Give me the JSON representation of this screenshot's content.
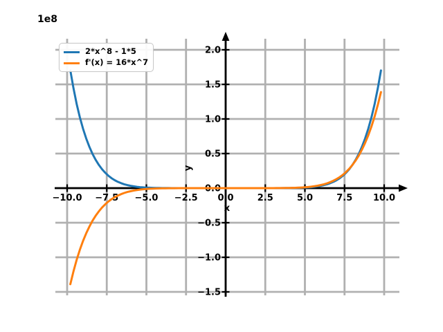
{
  "chart_data": {
    "type": "line",
    "offset_text": "1e8",
    "xlabel": "x",
    "ylabel": "y",
    "x_ticks": [
      -10,
      -7.5,
      -5,
      -2.5,
      0,
      2.5,
      5,
      7.5,
      10
    ],
    "x_tick_labels": [
      "−10.0",
      "−7.5",
      "−5.0",
      "−2.5",
      "0.0",
      "2.5",
      "5.0",
      "7.5",
      "10.0"
    ],
    "y_ticks": [
      2,
      1.5,
      1,
      0.5,
      0,
      -0.5,
      -1,
      -1.5
    ],
    "y_tick_labels": [
      "2.0",
      "1.5",
      "1.0",
      "0.5",
      "0.0",
      "−0.5",
      "−1.0",
      "−1.5"
    ],
    "y_scale": 100000000,
    "xlim": [
      -10.7,
      11.0
    ],
    "ylim_in_units_of_1e8": [
      -1.55,
      2.16
    ],
    "grid": true,
    "grid_color": "#b0b0b0",
    "axis_color": "#000000",
    "background_color": "#ffffff",
    "legend": {
      "position": "upper left"
    },
    "series": [
      {
        "label": "2*x^8 - 1*5",
        "color": "#1f77b4",
        "formula": {
          "coef": 2,
          "power": 8,
          "constant": -5
        },
        "x_start": -9.8,
        "x_end": 9.8,
        "x_step": 0.2
      },
      {
        "label": "f'(x) = 16*x^7",
        "color": "#ff7f0e",
        "formula": {
          "coef": 16,
          "power": 7,
          "constant": 0
        },
        "x_start": -9.8,
        "x_end": 9.8,
        "x_step": 0.2
      }
    ]
  }
}
